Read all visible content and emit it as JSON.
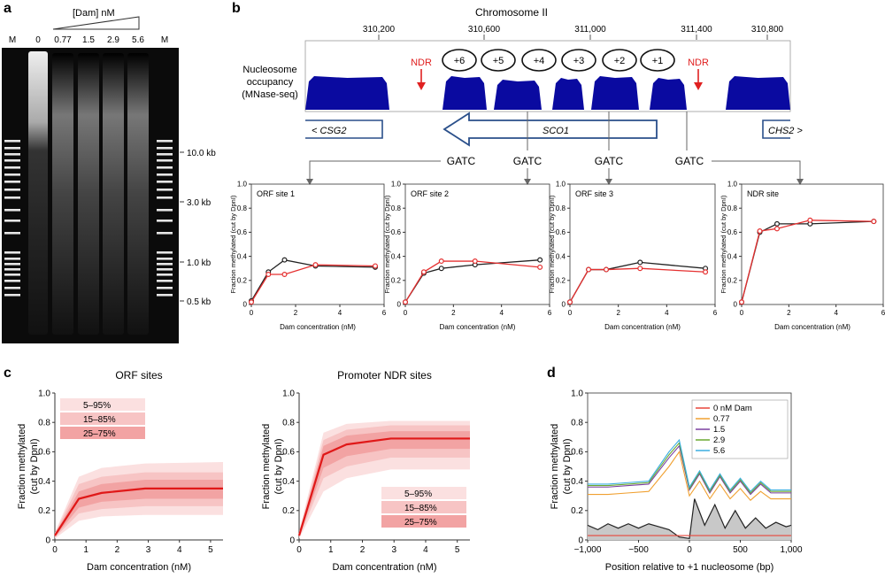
{
  "panel_labels": {
    "a": "a",
    "b": "b",
    "c": "c",
    "d": "d"
  },
  "gel": {
    "header": "[Dam] nM",
    "lanes": [
      "M",
      "0",
      "0.77",
      "1.5",
      "2.9",
      "5.6",
      "M"
    ],
    "size_markers": [
      "10.0 kb",
      "3.0 kb",
      "1.0 kb",
      "0.5 kb"
    ]
  },
  "track": {
    "chromosome_label": "Chromosome II",
    "coord_ticks": [
      "310,200",
      "310,600",
      "311,000",
      "311,400",
      "310,800"
    ],
    "track_label_lines": [
      "Nucleosome",
      "occupancy",
      "(MNase-seq)"
    ],
    "nucleosomes": [
      "+6",
      "+5",
      "+4",
      "+3",
      "+2",
      "+1"
    ],
    "ndr_label": "NDR",
    "genes": [
      "< CSG2",
      "SCO1",
      "CHS2 >"
    ],
    "gatc_label": "GATC",
    "colors": {
      "signal": "#0a0aa0",
      "ndr": "#e02020",
      "gene_outline": "#2a4f8a"
    }
  },
  "chart_data": [
    {
      "type": "line",
      "panel": "b",
      "title": "ORF site 1",
      "xlabel": "Dam concentration (nM)",
      "ylabel": "Fraction methylated (cut by DpnI)",
      "xlim": [
        0,
        6
      ],
      "ylim": [
        0,
        1
      ],
      "xticks": [
        "0",
        "2",
        "4",
        "6"
      ],
      "yticks": [
        "0",
        "0.2",
        "0.4",
        "0.6",
        "0.8",
        "1.0"
      ],
      "series": [
        {
          "color": "#222222",
          "x": [
            0,
            0.77,
            1.5,
            2.9,
            5.6
          ],
          "y": [
            0.03,
            0.27,
            0.37,
            0.32,
            0.31
          ]
        },
        {
          "color": "#e53030",
          "x": [
            0,
            0.77,
            1.5,
            2.9,
            5.6
          ],
          "y": [
            0.02,
            0.25,
            0.25,
            0.33,
            0.32
          ]
        }
      ]
    },
    {
      "type": "line",
      "panel": "b",
      "title": "ORF site 2",
      "xlabel": "Dam concentration (nM)",
      "ylabel": "Fraction methylated (cut by DpnI)",
      "xlim": [
        0,
        6
      ],
      "ylim": [
        0,
        1
      ],
      "xticks": [
        "0",
        "2",
        "4",
        "6"
      ],
      "yticks": [
        "0",
        "0.2",
        "0.4",
        "0.6",
        "0.8",
        "1.0"
      ],
      "series": [
        {
          "color": "#222222",
          "x": [
            0,
            0.77,
            1.5,
            2.9,
            5.6
          ],
          "y": [
            0.02,
            0.26,
            0.3,
            0.33,
            0.37
          ]
        },
        {
          "color": "#e53030",
          "x": [
            0,
            0.77,
            1.5,
            2.9,
            5.6
          ],
          "y": [
            0.02,
            0.27,
            0.36,
            0.36,
            0.31
          ]
        }
      ]
    },
    {
      "type": "line",
      "panel": "b",
      "title": "ORF site 3",
      "xlabel": "Dam concentration (nM)",
      "ylabel": "Fraction methylated (cut by DpnI)",
      "xlim": [
        0,
        6
      ],
      "ylim": [
        0,
        1
      ],
      "xticks": [
        "0",
        "2",
        "4",
        "6"
      ],
      "yticks": [
        "0",
        "0.2",
        "0.4",
        "0.6",
        "0.8",
        "1.0"
      ],
      "series": [
        {
          "color": "#222222",
          "x": [
            0,
            0.77,
            1.5,
            2.9,
            5.6
          ],
          "y": [
            0.02,
            0.29,
            0.29,
            0.35,
            0.3
          ]
        },
        {
          "color": "#e53030",
          "x": [
            0,
            0.77,
            1.5,
            2.9,
            5.6
          ],
          "y": [
            0.02,
            0.29,
            0.29,
            0.3,
            0.27
          ]
        }
      ]
    },
    {
      "type": "line",
      "panel": "b",
      "title": "NDR site",
      "xlabel": "Dam concentration (nM)",
      "ylabel": "Fraction methylated (cut by DpnI)",
      "xlim": [
        0,
        6
      ],
      "ylim": [
        0,
        1
      ],
      "xticks": [
        "0",
        "2",
        "4",
        "6"
      ],
      "yticks": [
        "0",
        "0.2",
        "0.4",
        "0.6",
        "0.8",
        "1.0"
      ],
      "series": [
        {
          "color": "#222222",
          "x": [
            0,
            0.77,
            1.5,
            2.9,
            5.6
          ],
          "y": [
            0.02,
            0.6,
            0.67,
            0.67,
            0.69
          ]
        },
        {
          "color": "#e53030",
          "x": [
            0,
            0.77,
            1.5,
            2.9,
            5.6
          ],
          "y": [
            0.02,
            0.61,
            0.63,
            0.7,
            0.69
          ]
        }
      ]
    },
    {
      "type": "area",
      "panel": "c",
      "title": "ORF sites",
      "xlabel": "Dam concentration (nM)",
      "ylabel_lines": [
        "Fraction methylated",
        "(cut by DpnI)"
      ],
      "xlim": [
        0,
        5.4
      ],
      "ylim": [
        0,
        1
      ],
      "xticks": [
        "0",
        "1",
        "2",
        "3",
        "4",
        "5"
      ],
      "yticks": [
        "0",
        "0.2",
        "0.4",
        "0.6",
        "0.8",
        "1.0"
      ],
      "legend_placement": "top-left",
      "legend": [
        "5–95%",
        "15–85%",
        "25–75%"
      ],
      "x": [
        0,
        0.77,
        1.5,
        2.9,
        5.4
      ],
      "median": [
        0.03,
        0.28,
        0.32,
        0.35,
        0.35
      ],
      "bands": [
        {
          "name": "5–95%",
          "lo": [
            0.01,
            0.13,
            0.16,
            0.17,
            0.17
          ],
          "hi": [
            0.05,
            0.43,
            0.49,
            0.52,
            0.53
          ]
        },
        {
          "name": "15–85%",
          "lo": [
            0.015,
            0.18,
            0.21,
            0.23,
            0.23
          ],
          "hi": [
            0.045,
            0.38,
            0.43,
            0.46,
            0.46
          ]
        },
        {
          "name": "25–75%",
          "lo": [
            0.02,
            0.22,
            0.26,
            0.28,
            0.28
          ],
          "hi": [
            0.04,
            0.33,
            0.38,
            0.41,
            0.41
          ]
        }
      ]
    },
    {
      "type": "area",
      "panel": "c",
      "title": "Promoter NDR sites",
      "xlabel": "Dam concentration (nM)",
      "ylabel_lines": [
        "Fraction methylated",
        "(cut by DpnI)"
      ],
      "xlim": [
        0,
        5.4
      ],
      "ylim": [
        0,
        1
      ],
      "xticks": [
        "0",
        "1",
        "2",
        "3",
        "4",
        "5"
      ],
      "yticks": [
        "0",
        "0.2",
        "0.4",
        "0.6",
        "0.8",
        "1.0"
      ],
      "legend_placement": "bottom-right",
      "legend": [
        "5–95%",
        "15–85%",
        "25–75%"
      ],
      "x": [
        0,
        0.77,
        1.5,
        2.9,
        5.4
      ],
      "median": [
        0.03,
        0.58,
        0.65,
        0.69,
        0.69
      ],
      "bands": [
        {
          "name": "5–95%",
          "lo": [
            0.01,
            0.33,
            0.42,
            0.48,
            0.48
          ],
          "hi": [
            0.06,
            0.73,
            0.79,
            0.81,
            0.81
          ]
        },
        {
          "name": "15–85%",
          "lo": [
            0.015,
            0.42,
            0.5,
            0.56,
            0.56
          ],
          "hi": [
            0.05,
            0.68,
            0.75,
            0.78,
            0.78
          ]
        },
        {
          "name": "25–75%",
          "lo": [
            0.02,
            0.49,
            0.57,
            0.62,
            0.62
          ],
          "hi": [
            0.04,
            0.64,
            0.71,
            0.74,
            0.74
          ]
        }
      ]
    },
    {
      "type": "line",
      "panel": "d",
      "xlabel": "Position relative to +1 nucleosome (bp)",
      "ylabel_lines": [
        "Fraction methylated",
        "(cut by DpnI)"
      ],
      "xlim": [
        -1000,
        1000
      ],
      "ylim": [
        0,
        1
      ],
      "xticks": [
        "−1,000",
        "−500",
        "0",
        "500",
        "1,000"
      ],
      "yticks": [
        "0",
        "0.2",
        "0.4",
        "0.6",
        "0.8",
        "1.0"
      ],
      "legend_placement": "top-right",
      "series": [
        {
          "name": "0 nM Dam",
          "color": "#e8463a",
          "x": [
            -1000,
            -500,
            0,
            500,
            1000
          ],
          "y": [
            0.03,
            0.03,
            0.03,
            0.03,
            0.03
          ]
        },
        {
          "name": "0.77",
          "color": "#f0a030",
          "x": [
            -1000,
            -800,
            -600,
            -400,
            -200,
            -100,
            0,
            100,
            200,
            300,
            400,
            500,
            600,
            700,
            800,
            1000
          ],
          "y": [
            0.31,
            0.31,
            0.32,
            0.33,
            0.5,
            0.6,
            0.3,
            0.4,
            0.28,
            0.38,
            0.28,
            0.35,
            0.27,
            0.33,
            0.28,
            0.28
          ]
        },
        {
          "name": "1.5",
          "color": "#7a3fa0",
          "x": [
            -1000,
            -800,
            -600,
            -400,
            -200,
            -100,
            0,
            100,
            200,
            300,
            400,
            500,
            600,
            700,
            800,
            1000
          ],
          "y": [
            0.36,
            0.36,
            0.37,
            0.38,
            0.56,
            0.64,
            0.34,
            0.45,
            0.32,
            0.43,
            0.32,
            0.4,
            0.31,
            0.38,
            0.32,
            0.32
          ]
        },
        {
          "name": "2.9",
          "color": "#6aa830",
          "x": [
            -1000,
            -800,
            -600,
            -400,
            -200,
            -100,
            0,
            100,
            200,
            300,
            400,
            500,
            600,
            700,
            800,
            1000
          ],
          "y": [
            0.37,
            0.37,
            0.38,
            0.39,
            0.58,
            0.66,
            0.35,
            0.46,
            0.33,
            0.44,
            0.33,
            0.41,
            0.32,
            0.39,
            0.33,
            0.33
          ]
        },
        {
          "name": "5.6",
          "color": "#3aaee0",
          "x": [
            -1000,
            -800,
            -600,
            -400,
            -200,
            -100,
            0,
            100,
            200,
            300,
            400,
            500,
            600,
            700,
            800,
            1000
          ],
          "y": [
            0.38,
            0.38,
            0.39,
            0.4,
            0.6,
            0.68,
            0.36,
            0.47,
            0.34,
            0.45,
            0.34,
            0.42,
            0.33,
            0.4,
            0.34,
            0.34
          ]
        },
        {
          "color": "#222222",
          "fill": "#c8c8c8",
          "x": [
            -1000,
            -900,
            -800,
            -700,
            -600,
            -500,
            -400,
            -300,
            -200,
            -100,
            0,
            50,
            150,
            250,
            350,
            450,
            550,
            650,
            750,
            850,
            950,
            1000
          ],
          "y": [
            0.1,
            0.07,
            0.11,
            0.08,
            0.11,
            0.08,
            0.11,
            0.09,
            0.07,
            0.02,
            0.01,
            0.28,
            0.1,
            0.24,
            0.08,
            0.2,
            0.08,
            0.15,
            0.08,
            0.12,
            0.09,
            0.1
          ]
        }
      ]
    }
  ]
}
